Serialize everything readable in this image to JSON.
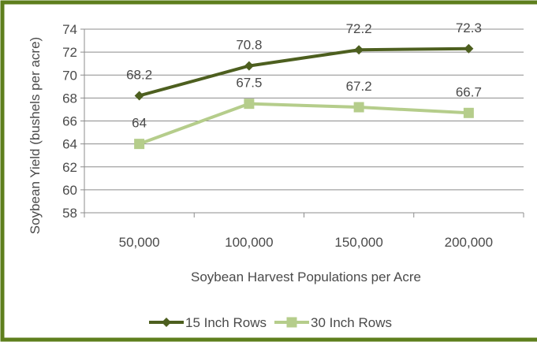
{
  "colors": {
    "frame": "#5e7f1d",
    "series_1": "#4d5f1f",
    "series_2": "#b5cd8b",
    "grid": "#8c8c8c",
    "text": "#4a4a4a"
  },
  "chart_data": {
    "type": "line",
    "title": "",
    "xlabel": "Soybean Harvest Populations per Acre",
    "ylabel": "Soybean Yield (bushels per acre)",
    "categories": [
      "50,000",
      "100,000",
      "150,000",
      "200,000"
    ],
    "ylim": [
      58,
      74
    ],
    "yticks": [
      58,
      60,
      62,
      64,
      66,
      68,
      70,
      72,
      74
    ],
    "grid": true,
    "legend_position": "bottom",
    "series": [
      {
        "name": "15 Inch Rows",
        "marker": "diamond",
        "values": [
          68.2,
          70.8,
          72.2,
          72.3
        ]
      },
      {
        "name": "30 Inch Rows",
        "marker": "square",
        "values": [
          64,
          67.5,
          67.2,
          66.7
        ]
      }
    ]
  }
}
